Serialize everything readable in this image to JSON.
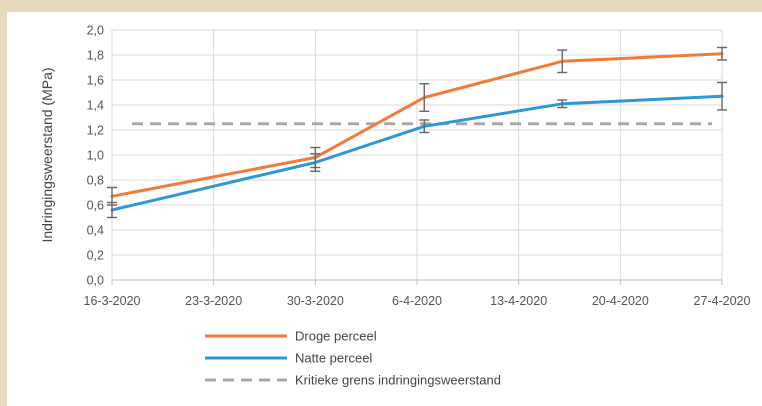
{
  "chart_data": {
    "type": "line",
    "title": "",
    "xlabel": "",
    "ylabel": "Indringingsweerstand (MPa)",
    "ylim": [
      0,
      2.0
    ],
    "ytick_labels": [
      "0,0",
      "0,2",
      "0,4",
      "0,6",
      "0,8",
      "1,0",
      "1,2",
      "1,4",
      "1,6",
      "1,8",
      "2,0"
    ],
    "ytick_values": [
      0,
      0.2,
      0.4,
      0.6,
      0.8,
      1.0,
      1.2,
      1.4,
      1.6,
      1.8,
      2.0
    ],
    "x_tick_labels": [
      "16-3-2020",
      "23-3-2020",
      "30-3-2020",
      "6-4-2020",
      "13-4-2020",
      "20-4-2020",
      "27-4-2020"
    ],
    "x_tick_days": [
      0,
      7,
      14,
      21,
      28,
      35,
      42
    ],
    "grid": true,
    "series": [
      {
        "name": "Droge perceel",
        "color": "#f07c3a",
        "x_days": [
          0,
          14,
          21.5,
          31,
          42
        ],
        "x_dates": [
          "16-3-2020",
          "30-3-2020",
          "6-4-2020",
          "16-4-2020",
          "27-4-2020"
        ],
        "values": [
          0.67,
          0.98,
          1.46,
          1.75,
          1.81
        ],
        "error": [
          0.07,
          0.08,
          0.11,
          0.09,
          0.05
        ],
        "error_at": [
          true,
          true,
          true,
          true,
          true
        ]
      },
      {
        "name": "Natte perceel",
        "color": "#2e97d6",
        "x_days": [
          0,
          14,
          21.5,
          31,
          42
        ],
        "x_dates": [
          "16-3-2020",
          "30-3-2020",
          "6-4-2020",
          "16-4-2020",
          "27-4-2020"
        ],
        "values": [
          0.56,
          0.94,
          1.23,
          1.41,
          1.47
        ],
        "error": [
          0.06,
          0.07,
          0.05,
          0.03,
          0.11
        ],
        "error_at": [
          true,
          true,
          true,
          true,
          true
        ]
      }
    ],
    "threshold": {
      "name": "Kritieke grens indringingsweerstand",
      "value": 1.25,
      "color": "#a8a8a8"
    },
    "legend_position": "bottom-center"
  }
}
